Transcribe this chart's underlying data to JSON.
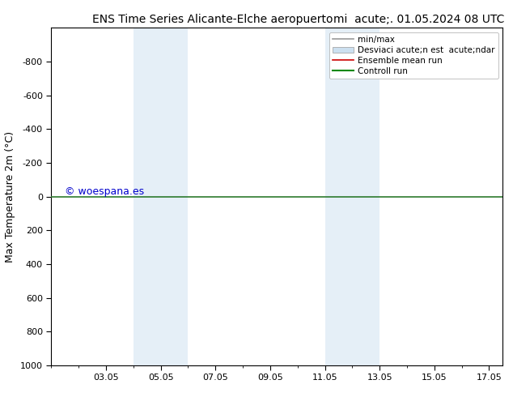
{
  "title_left": "ENS Time Series Alicante-Elche aeropuerto",
  "title_right": "mi  acute;. 01.05.2024 08 UTC",
  "ylabel": "Max Temperature 2m (°C)",
  "ylim_top": -1000,
  "ylim_bottom": 1000,
  "yticks": [
    -800,
    -600,
    -400,
    -200,
    0,
    200,
    400,
    600,
    800,
    1000
  ],
  "xlim_left": 1.0,
  "xlim_right": 17.5,
  "xtick_labels": [
    "03.05",
    "05.05",
    "07.05",
    "09.05",
    "11.05",
    "13.05",
    "15.05",
    "17.05"
  ],
  "xtick_positions_day": [
    3,
    5,
    7,
    9,
    11,
    13,
    15,
    17
  ],
  "shaded_bands": [
    {
      "start_day": 4.0,
      "end_day": 6.0
    },
    {
      "start_day": 11.0,
      "end_day": 13.0
    }
  ],
  "hline_y": 0,
  "hline_color": "#2d7a2d",
  "bg_color": "#ffffff",
  "plot_bg_color": "#ffffff",
  "band_color": "#cce0f0",
  "band_alpha": 0.5,
  "watermark": "© woespana.es",
  "watermark_color": "#0000cc",
  "watermark_fontsize": 9,
  "legend_label_minmax": "min/max",
  "legend_label_std": "Desviaci acute;n est  acute;ndar",
  "legend_label_ensemble": "Ensemble mean run",
  "legend_label_control": "Controll run",
  "legend_color_minmax": "#999999",
  "legend_color_std": "#cce0f0",
  "legend_color_ensemble": "#cc0000",
  "legend_color_control": "#008800",
  "font_size_title": 10,
  "font_size_axis_label": 9,
  "font_size_ticks": 8,
  "font_size_legend": 7.5
}
